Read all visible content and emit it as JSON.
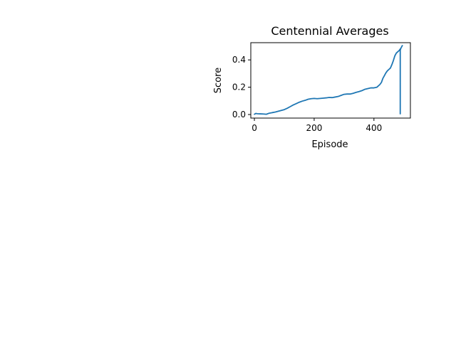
{
  "chart_data": {
    "type": "line",
    "title": "Centennial Averages",
    "xlabel": "Episode",
    "ylabel": "Score",
    "xlim": [
      -12,
      522
    ],
    "ylim": [
      -0.026,
      0.526
    ],
    "xticks": [
      0,
      200,
      400
    ],
    "xtick_labels": [
      "0",
      "200",
      "400"
    ],
    "yticks": [
      0.0,
      0.2,
      0.4
    ],
    "ytick_labels": [
      "0.0",
      "0.2",
      "0.4"
    ],
    "grid": false,
    "series": [
      {
        "color": "#1f77b4",
        "x": [
          0,
          5,
          10,
          20,
          30,
          40,
          50,
          60,
          70,
          80,
          90,
          100,
          110,
          120,
          130,
          140,
          150,
          160,
          170,
          180,
          190,
          200,
          210,
          220,
          230,
          240,
          250,
          260,
          270,
          280,
          290,
          300,
          310,
          320,
          330,
          340,
          350,
          360,
          370,
          380,
          390,
          400,
          410,
          420,
          425,
          430,
          435,
          440,
          445,
          450,
          455,
          460,
          465,
          470,
          475,
          480,
          485,
          488,
          488,
          488,
          490,
          495
        ],
        "y": [
          0.002,
          0.008,
          0.006,
          0.005,
          0.004,
          0.002,
          0.01,
          0.014,
          0.018,
          0.024,
          0.03,
          0.036,
          0.046,
          0.058,
          0.07,
          0.08,
          0.09,
          0.098,
          0.104,
          0.112,
          0.116,
          0.118,
          0.116,
          0.118,
          0.12,
          0.122,
          0.125,
          0.124,
          0.128,
          0.132,
          0.14,
          0.148,
          0.15,
          0.15,
          0.155,
          0.162,
          0.168,
          0.175,
          0.185,
          0.19,
          0.195,
          0.195,
          0.2,
          0.22,
          0.235,
          0.265,
          0.285,
          0.305,
          0.32,
          0.33,
          0.34,
          0.365,
          0.395,
          0.43,
          0.45,
          0.46,
          0.47,
          0.48,
          0.005,
          0.47,
          0.485,
          0.505
        ]
      }
    ]
  }
}
